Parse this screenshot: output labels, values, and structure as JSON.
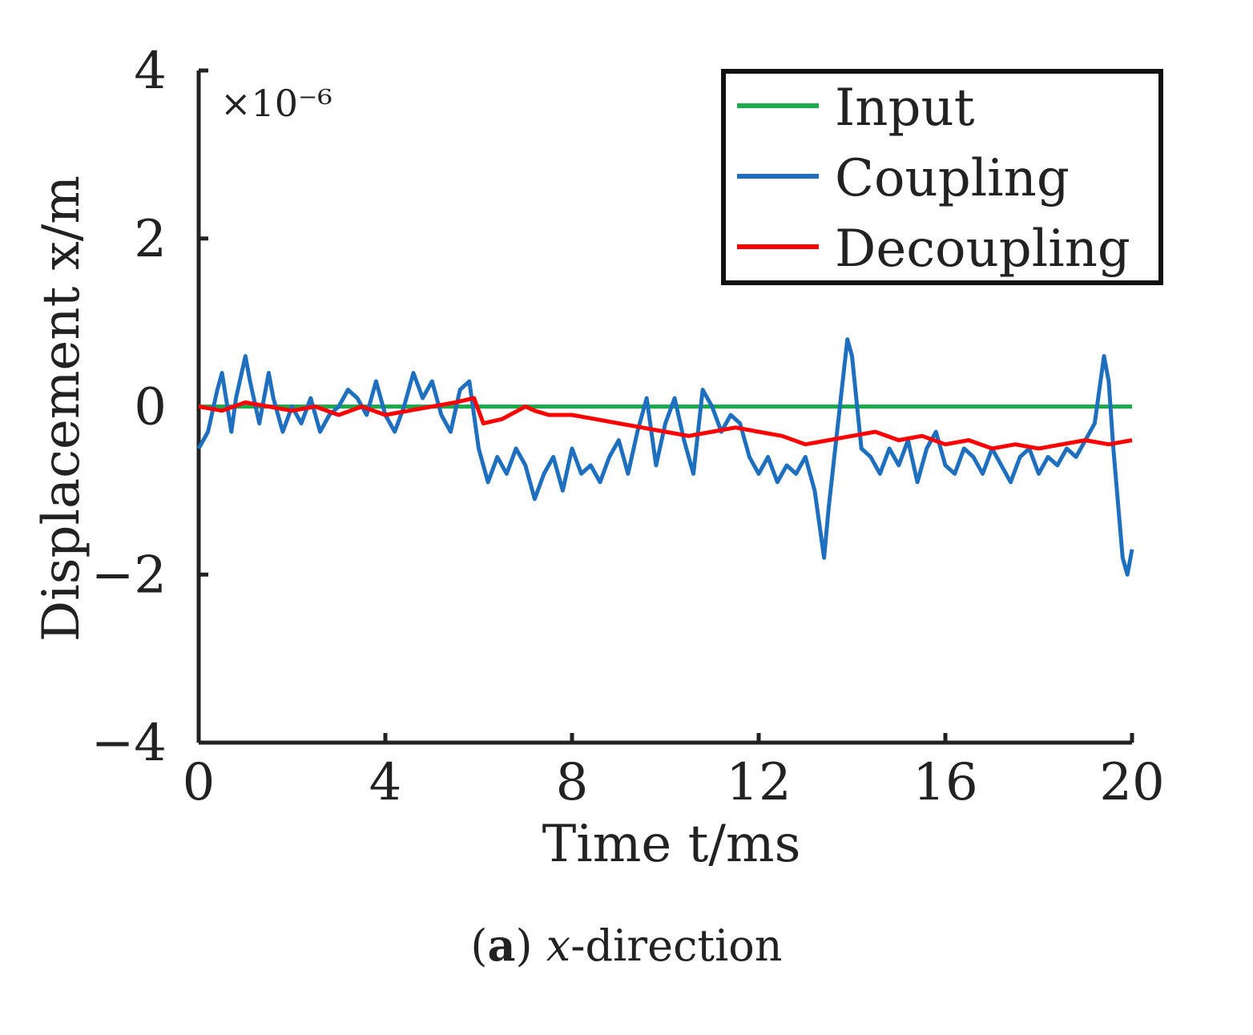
{
  "chart_data": {
    "type": "line",
    "title": "",
    "xlabel": "Time t/ms",
    "ylabel": "Displacement x/m",
    "y_multiplier": "×10⁻⁶",
    "xlim": [
      0,
      20
    ],
    "ylim": [
      -4,
      4
    ],
    "x_ticks": [
      0,
      4,
      8,
      12,
      16,
      20
    ],
    "x_tick_labels": [
      "0",
      "4",
      "8",
      "12",
      "16",
      "20"
    ],
    "y_ticks": [
      4,
      2,
      0,
      -2,
      -4
    ],
    "y_tick_labels": [
      "4",
      "2",
      "0",
      "−2",
      "−4"
    ],
    "legend_position": "top-right",
    "series": [
      {
        "name": "Input",
        "color": "#1aab4a",
        "x": [
          0,
          20
        ],
        "y": [
          0,
          0
        ]
      },
      {
        "name": "Coupling",
        "color": "#1f6fbf",
        "x": [
          0,
          0.2,
          0.4,
          0.5,
          0.7,
          0.8,
          1.0,
          1.1,
          1.3,
          1.5,
          1.6,
          1.8,
          2.0,
          2.2,
          2.4,
          2.6,
          2.8,
          3.0,
          3.2,
          3.4,
          3.6,
          3.8,
          4.0,
          4.2,
          4.4,
          4.6,
          4.8,
          5.0,
          5.2,
          5.4,
          5.6,
          5.8,
          6.0,
          6.2,
          6.4,
          6.6,
          6.8,
          7.0,
          7.2,
          7.4,
          7.6,
          7.8,
          8.0,
          8.2,
          8.4,
          8.6,
          8.8,
          9.0,
          9.2,
          9.4,
          9.6,
          9.8,
          10.0,
          10.2,
          10.4,
          10.6,
          10.8,
          11.0,
          11.2,
          11.4,
          11.6,
          11.8,
          12.0,
          12.2,
          12.4,
          12.6,
          12.8,
          13.0,
          13.2,
          13.4,
          13.5,
          13.7,
          13.9,
          14.0,
          14.2,
          14.4,
          14.6,
          14.8,
          15.0,
          15.2,
          15.4,
          15.6,
          15.8,
          16.0,
          16.2,
          16.4,
          16.6,
          16.8,
          17.0,
          17.2,
          17.4,
          17.6,
          17.8,
          18.0,
          18.2,
          18.4,
          18.6,
          18.8,
          19.0,
          19.2,
          19.4,
          19.5,
          19.6,
          19.8,
          19.9,
          20.0
        ],
        "y": [
          -0.5,
          -0.3,
          0.2,
          0.4,
          -0.3,
          0.1,
          0.6,
          0.3,
          -0.2,
          0.4,
          0.1,
          -0.3,
          0.0,
          -0.2,
          0.1,
          -0.3,
          -0.1,
          0.0,
          0.2,
          0.1,
          -0.1,
          0.3,
          -0.1,
          -0.3,
          0.0,
          0.4,
          0.1,
          0.3,
          -0.1,
          -0.3,
          0.2,
          0.3,
          -0.5,
          -0.9,
          -0.6,
          -0.8,
          -0.5,
          -0.7,
          -1.1,
          -0.8,
          -0.6,
          -1.0,
          -0.5,
          -0.8,
          -0.7,
          -0.9,
          -0.6,
          -0.4,
          -0.8,
          -0.3,
          0.1,
          -0.7,
          -0.2,
          0.1,
          -0.4,
          -0.8,
          0.2,
          0.0,
          -0.3,
          -0.1,
          -0.2,
          -0.6,
          -0.8,
          -0.6,
          -0.9,
          -0.7,
          -0.8,
          -0.6,
          -1.0,
          -1.8,
          -1.2,
          -0.2,
          0.8,
          0.6,
          -0.5,
          -0.6,
          -0.8,
          -0.5,
          -0.7,
          -0.4,
          -0.9,
          -0.5,
          -0.3,
          -0.7,
          -0.8,
          -0.5,
          -0.6,
          -0.8,
          -0.5,
          -0.7,
          -0.9,
          -0.6,
          -0.5,
          -0.8,
          -0.6,
          -0.7,
          -0.5,
          -0.6,
          -0.4,
          -0.2,
          0.6,
          0.3,
          -0.5,
          -1.8,
          -2.0,
          -1.7
        ]
      },
      {
        "name": "Decoupling",
        "color": "#ff0000",
        "x": [
          0,
          0.5,
          1.0,
          1.5,
          2.0,
          2.5,
          3.0,
          3.5,
          4.0,
          4.5,
          5.0,
          5.5,
          5.9,
          6.1,
          6.5,
          7.0,
          7.2,
          7.5,
          8.0,
          8.5,
          9.0,
          9.5,
          10.0,
          10.5,
          11.0,
          11.5,
          12.0,
          12.5,
          13.0,
          13.5,
          14.0,
          14.5,
          15.0,
          15.5,
          16.0,
          16.5,
          17.0,
          17.5,
          18.0,
          18.5,
          19.0,
          19.5,
          20.0
        ],
        "y": [
          0.0,
          -0.05,
          0.05,
          0.0,
          -0.05,
          0.0,
          -0.1,
          0.0,
          -0.1,
          -0.05,
          0.0,
          0.05,
          0.1,
          -0.2,
          -0.15,
          0.0,
          -0.05,
          -0.1,
          -0.1,
          -0.15,
          -0.2,
          -0.25,
          -0.3,
          -0.35,
          -0.3,
          -0.25,
          -0.3,
          -0.35,
          -0.45,
          -0.4,
          -0.35,
          -0.3,
          -0.4,
          -0.35,
          -0.45,
          -0.4,
          -0.5,
          -0.45,
          -0.5,
          -0.45,
          -0.4,
          -0.45,
          -0.4
        ]
      }
    ]
  },
  "caption": {
    "label": "a",
    "open": "(",
    "close": ")",
    "variable": "x",
    "rest": "-direction"
  }
}
